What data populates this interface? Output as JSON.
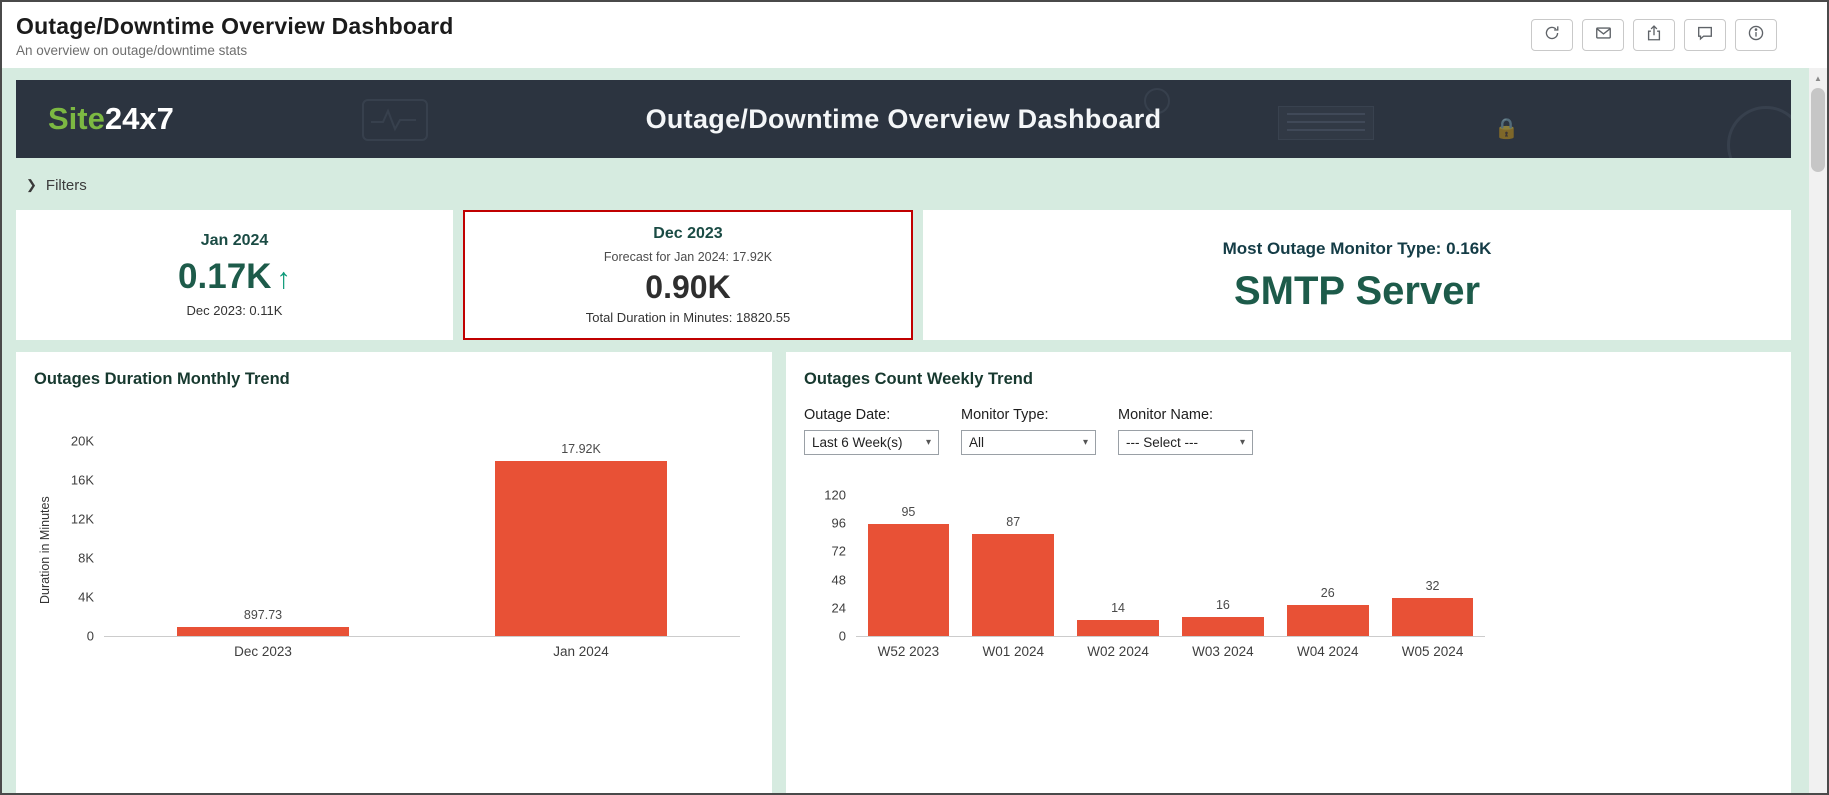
{
  "header": {
    "title": "Outage/Downtime Overview Dashboard",
    "subtitle": "An overview on outage/downtime stats",
    "toolbar_icons": [
      "refresh-icon",
      "email-icon",
      "export-icon",
      "comment-icon",
      "info-icon"
    ]
  },
  "banner": {
    "logo_green": "Site",
    "logo_white": "24x7",
    "title": "Outage/Downtime Overview Dashboard"
  },
  "filters": {
    "label": "Filters",
    "chevron": "❯"
  },
  "kpi_cards": [
    {
      "title": "Jan 2024",
      "value": "0.17K",
      "trend": "up",
      "trend_arrow": "↑",
      "footer": "Dec 2023: 0.11K"
    },
    {
      "title": "Dec 2023",
      "subtitle": "Forecast for Jan 2024: 17.92K",
      "value": "0.90K",
      "footer": "Total Duration in Minutes: 18820.55",
      "highlighted": true
    },
    {
      "title": "Most Outage Monitor Type: 0.16K",
      "value": "SMTP Server"
    }
  ],
  "colors": {
    "mint_background": "#d6ebe0",
    "banner_background": "#2c3440",
    "logo_green": "#7cb842",
    "bar_red": "#e85136",
    "kpi_green": "#1d5b4a",
    "highlight_border": "#c00000"
  },
  "chart_data": [
    {
      "type": "bar",
      "title": "Outages Duration Monthly Trend",
      "xlabel": "",
      "ylabel": "Duration in Minutes",
      "categories": [
        "Dec 2023",
        "Jan 2024"
      ],
      "values": [
        897.73,
        17920
      ],
      "value_labels": [
        "897.73",
        "17.92K"
      ],
      "ylim": [
        0,
        20000
      ],
      "yticks": [
        {
          "v": 0,
          "label": "0"
        },
        {
          "v": 4000,
          "label": "4K"
        },
        {
          "v": 8000,
          "label": "8K"
        },
        {
          "v": 12000,
          "label": "12K"
        },
        {
          "v": 16000,
          "label": "16K"
        },
        {
          "v": 20000,
          "label": "20K"
        }
      ],
      "grid": false,
      "legend": false,
      "bar_color": "#e85136"
    },
    {
      "type": "bar",
      "title": "Outages Count Weekly Trend",
      "filters": [
        {
          "label": "Outage Date:",
          "value": "Last 6 Week(s)"
        },
        {
          "label": "Monitor Type:",
          "value": "All"
        },
        {
          "label": "Monitor Name:",
          "value": "--- Select ---"
        }
      ],
      "xlabel": "",
      "ylabel": "",
      "categories": [
        "W52 2023",
        "W01 2024",
        "W02 2024",
        "W03 2024",
        "W04 2024",
        "W05 2024"
      ],
      "values": [
        95,
        87,
        14,
        16,
        26,
        32
      ],
      "value_labels": [
        "95",
        "87",
        "14",
        "16",
        "26",
        "32"
      ],
      "ylim": [
        0,
        120
      ],
      "yticks": [
        {
          "v": 0,
          "label": "0"
        },
        {
          "v": 24,
          "label": "24"
        },
        {
          "v": 48,
          "label": "48"
        },
        {
          "v": 72,
          "label": "72"
        },
        {
          "v": 96,
          "label": "96"
        },
        {
          "v": 120,
          "label": "120"
        }
      ],
      "grid": false,
      "legend": false,
      "bar_color": "#e85136"
    }
  ]
}
